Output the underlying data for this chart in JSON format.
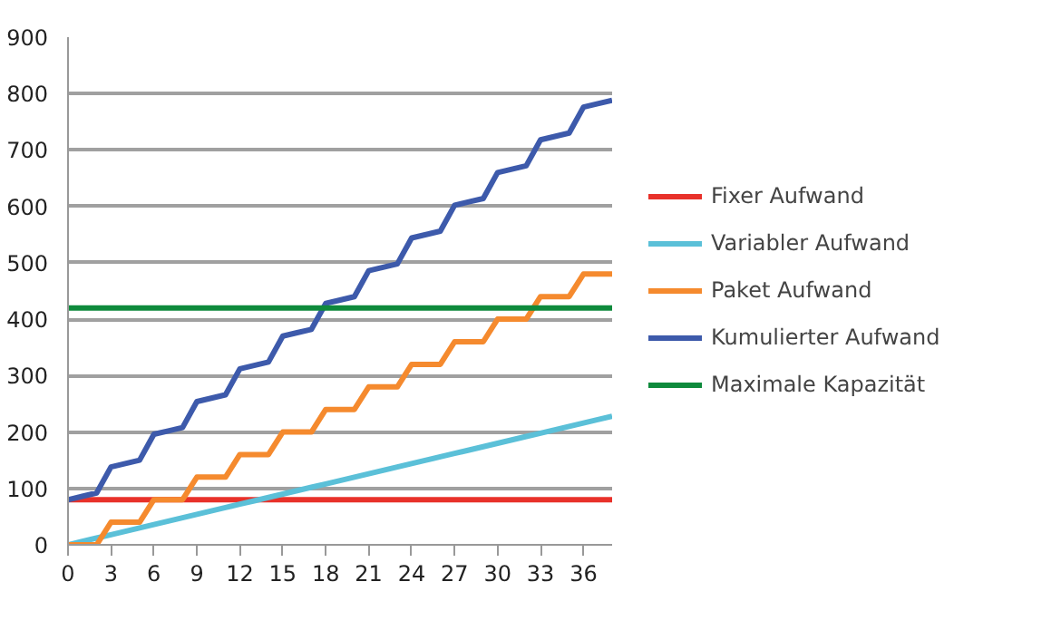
{
  "chart_data": {
    "type": "line",
    "x": [
      0,
      1,
      2,
      3,
      4,
      5,
      6,
      7,
      8,
      9,
      10,
      11,
      12,
      13,
      14,
      15,
      16,
      17,
      18,
      19,
      20,
      21,
      22,
      23,
      24,
      25,
      26,
      27,
      28,
      29,
      30,
      31,
      32,
      33,
      34,
      35,
      36,
      37,
      38
    ],
    "series": [
      {
        "name": "Fixer Aufwand",
        "color": "#e8312a",
        "values": [
          80,
          80,
          80,
          80,
          80,
          80,
          80,
          80,
          80,
          80,
          80,
          80,
          80,
          80,
          80,
          80,
          80,
          80,
          80,
          80,
          80,
          80,
          80,
          80,
          80,
          80,
          80,
          80,
          80,
          80,
          80,
          80,
          80,
          80,
          80,
          80,
          80,
          80,
          80
        ]
      },
      {
        "name": "Variabler Aufwand",
        "color": "#5bc0d8",
        "values": [
          0,
          6,
          12,
          18,
          24,
          30,
          36,
          42,
          48,
          54,
          60,
          66,
          72,
          78,
          84,
          90,
          96,
          102,
          108,
          114,
          120,
          126,
          132,
          138,
          144,
          150,
          156,
          162,
          168,
          174,
          180,
          186,
          192,
          198,
          204,
          210,
          216,
          222,
          228
        ]
      },
      {
        "name": "Paket Aufwand",
        "color": "#f58a2e",
        "values": [
          0,
          0,
          0,
          40,
          40,
          40,
          80,
          80,
          80,
          120,
          120,
          120,
          160,
          160,
          160,
          200,
          200,
          200,
          240,
          240,
          240,
          280,
          280,
          280,
          320,
          320,
          320,
          360,
          360,
          360,
          400,
          400,
          400,
          440,
          440,
          440,
          480,
          480,
          480
        ]
      },
      {
        "name": "Kumulierter Aufwand",
        "color": "#3d5aab",
        "values": [
          80,
          86,
          92,
          138,
          144,
          150,
          196,
          202,
          208,
          254,
          260,
          266,
          312,
          318,
          324,
          370,
          376,
          382,
          428,
          434,
          440,
          486,
          492,
          498,
          544,
          550,
          556,
          602,
          608,
          614,
          660,
          666,
          672,
          718,
          724,
          730,
          776,
          782,
          788
        ]
      },
      {
        "name": "Maximale Kapazität",
        "color": "#0e8a3c",
        "values": [
          420,
          420,
          420,
          420,
          420,
          420,
          420,
          420,
          420,
          420,
          420,
          420,
          420,
          420,
          420,
          420,
          420,
          420,
          420,
          420,
          420,
          420,
          420,
          420,
          420,
          420,
          420,
          420,
          420,
          420,
          420,
          420,
          420,
          420,
          420,
          420,
          420,
          420,
          420
        ]
      }
    ],
    "xlim": [
      0,
      38
    ],
    "xticks": [
      0,
      3,
      6,
      9,
      12,
      15,
      18,
      21,
      24,
      27,
      30,
      33,
      36
    ],
    "ylim": [
      0,
      900
    ],
    "yticks": [
      0,
      100,
      200,
      300,
      400,
      500,
      600,
      700,
      800,
      900
    ],
    "grid": "y",
    "legend": "right",
    "marker": "none",
    "line_style": "solid"
  }
}
